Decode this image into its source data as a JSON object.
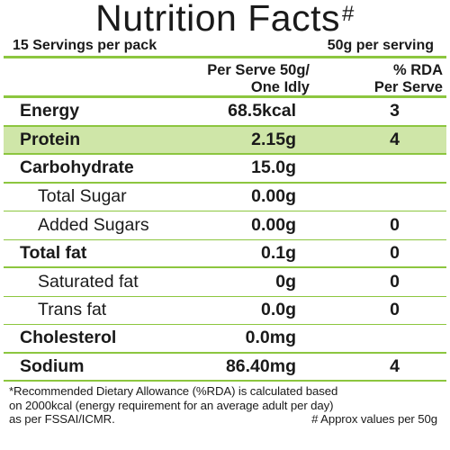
{
  "title": {
    "text": "Nutrition Facts",
    "mark": "#"
  },
  "servings": {
    "per_pack": "15 Servings per pack",
    "serving_size": "50g per serving"
  },
  "columns": {
    "per_serve_line1": "Per Serve 50g/",
    "per_serve_line2": "One Idly",
    "rda_line1": "% RDA",
    "rda_line2": "Per Serve"
  },
  "rows": [
    {
      "name": "Energy",
      "value": "68.5kcal",
      "rda": "3"
    },
    {
      "name": "Protein",
      "value": "2.15g",
      "rda": "4"
    },
    {
      "name": "Carbohydrate",
      "value": "15.0g",
      "rda": ""
    },
    {
      "name": "Total Sugar",
      "value": "0.00g",
      "rda": ""
    },
    {
      "name": "Added Sugars",
      "value": "0.00g",
      "rda": "0"
    },
    {
      "name": "Total fat",
      "value": "0.1g",
      "rda": "0"
    },
    {
      "name": "Saturated fat",
      "value": "0g",
      "rda": "0"
    },
    {
      "name": "Trans fat",
      "value": "0.0g",
      "rda": "0"
    },
    {
      "name": "Cholesterol",
      "value": "0.0mg",
      "rda": ""
    },
    {
      "name": "Sodium",
      "value": "86.40mg",
      "rda": "4"
    }
  ],
  "footnote": {
    "line1": "*Recommended Dietary Allowance (%RDA) is calculated based",
    "line2": "on 2000kcal (energy requirement for an average adult per day)",
    "line3": "as per FSSAI/ICMR.",
    "approx": "# Approx values per 50g"
  },
  "colors": {
    "accent_border": "#8cc63f",
    "highlight": "#cfe6a8"
  }
}
